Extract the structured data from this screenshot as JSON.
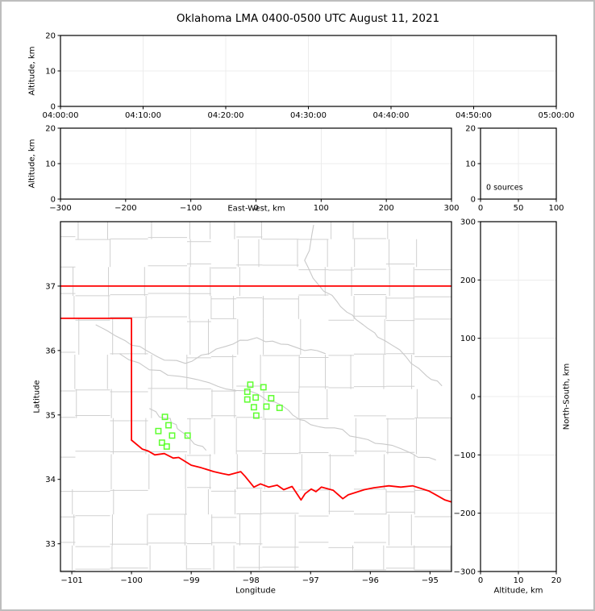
{
  "title": "Oklahoma LMA 0400-0500 UTC August 11, 2021",
  "colors": {
    "state_border": "#ff0000",
    "county_line": "#d0d0d0",
    "river_line": "#c9c9c9",
    "station_marker": "#5eff2f",
    "grid_line": "#ececec",
    "axis_line": "#000000",
    "figure_border": "#bdbdbd"
  },
  "panels": {
    "time_height": {
      "ylabel": "Altitude, km",
      "ylim": [
        0,
        20
      ],
      "yticks": [
        0,
        10,
        20
      ],
      "xticks": [
        "04:00:00",
        "04:10:00",
        "04:20:00",
        "04:30:00",
        "04:40:00",
        "04:50:00",
        "05:00:00"
      ]
    },
    "ew_height": {
      "xlabel": "East-West, km",
      "ylabel": "Altitude, km",
      "xlim": [
        -300,
        300
      ],
      "ylim": [
        0,
        20
      ],
      "xticks": [
        -300,
        -200,
        -100,
        0,
        100,
        200,
        300
      ],
      "yticks": [
        0,
        10,
        20
      ]
    },
    "alt_histogram": {
      "annotation": "0 sources",
      "xlim": [
        0,
        100
      ],
      "ylim": [
        0,
        20
      ],
      "xticks": [
        0,
        50,
        100
      ],
      "yticks": [
        0,
        10,
        20
      ]
    },
    "map": {
      "xlabel": "Longitude",
      "ylabel": "Latitude",
      "xlim": [
        -101.19,
        -94.64
      ],
      "ylim": [
        32.57,
        38.0
      ],
      "xticks": [
        -101,
        -100,
        -99,
        -98,
        -97,
        -96,
        -95
      ],
      "yticks": [
        33,
        34,
        35,
        36,
        37
      ],
      "state_border": {
        "north_border": [
          [
            -101.19,
            37.0
          ],
          [
            -94.64,
            37.0
          ]
        ],
        "panhandle": [
          [
            -101.19,
            36.5
          ],
          [
            -100.0,
            36.5
          ],
          [
            -100.0,
            34.61
          ]
        ],
        "red_river": [
          [
            -100.0,
            34.61
          ],
          [
            -99.82,
            34.47
          ],
          [
            -99.72,
            34.44
          ],
          [
            -99.61,
            34.38
          ],
          [
            -99.45,
            34.4
          ],
          [
            -99.3,
            34.33
          ],
          [
            -99.21,
            34.34
          ],
          [
            -99.0,
            34.22
          ],
          [
            -98.83,
            34.18
          ],
          [
            -98.62,
            34.12
          ],
          [
            -98.48,
            34.09
          ],
          [
            -98.37,
            34.07
          ],
          [
            -98.17,
            34.12
          ],
          [
            -98.1,
            34.05
          ],
          [
            -97.95,
            33.88
          ],
          [
            -97.84,
            33.93
          ],
          [
            -97.7,
            33.88
          ],
          [
            -97.56,
            33.91
          ],
          [
            -97.45,
            33.84
          ],
          [
            -97.31,
            33.89
          ],
          [
            -97.16,
            33.68
          ],
          [
            -97.09,
            33.78
          ],
          [
            -96.99,
            33.85
          ],
          [
            -96.91,
            33.81
          ],
          [
            -96.82,
            33.88
          ],
          [
            -96.62,
            33.83
          ],
          [
            -96.46,
            33.7
          ],
          [
            -96.37,
            33.76
          ],
          [
            -96.1,
            33.84
          ],
          [
            -95.94,
            33.87
          ],
          [
            -95.69,
            33.9
          ],
          [
            -95.49,
            33.88
          ],
          [
            -95.29,
            33.9
          ],
          [
            -95.02,
            33.82
          ],
          [
            -94.9,
            33.76
          ],
          [
            -94.75,
            33.68
          ],
          [
            -94.64,
            33.65
          ]
        ]
      },
      "rivers": [
        [
          [
            -96.95,
            37.95
          ],
          [
            -97.1,
            37.4
          ],
          [
            -96.85,
            37.0
          ],
          [
            -96.55,
            36.75
          ],
          [
            -96.3,
            36.55
          ],
          [
            -96.05,
            36.35
          ],
          [
            -95.75,
            36.15
          ],
          [
            -95.4,
            35.9
          ],
          [
            -95.05,
            35.6
          ],
          [
            -94.8,
            35.45
          ]
        ],
        [
          [
            -100.2,
            35.95
          ],
          [
            -99.7,
            35.7
          ],
          [
            -99.2,
            35.6
          ],
          [
            -98.7,
            35.5
          ],
          [
            -98.25,
            35.38
          ],
          [
            -97.9,
            35.33
          ],
          [
            -97.6,
            35.2
          ],
          [
            -97.3,
            35.0
          ],
          [
            -97.0,
            34.85
          ],
          [
            -96.6,
            34.8
          ],
          [
            -96.2,
            34.65
          ],
          [
            -95.8,
            34.55
          ],
          [
            -95.3,
            34.4
          ],
          [
            -94.9,
            34.3
          ]
        ],
        [
          [
            -100.6,
            36.4
          ],
          [
            -100.1,
            36.15
          ],
          [
            -99.75,
            36.0
          ],
          [
            -99.45,
            35.85
          ],
          [
            -99.1,
            35.8
          ],
          [
            -98.7,
            35.95
          ],
          [
            -98.3,
            36.1
          ],
          [
            -97.9,
            36.2
          ],
          [
            -97.5,
            36.1
          ],
          [
            -97.1,
            36.0
          ],
          [
            -96.75,
            35.95
          ]
        ],
        [
          [
            -99.7,
            35.1
          ],
          [
            -99.45,
            34.95
          ],
          [
            -99.25,
            34.85
          ],
          [
            -99.1,
            34.7
          ],
          [
            -98.95,
            34.55
          ],
          [
            -98.75,
            34.45
          ]
        ]
      ],
      "stations": [
        [
          -98.01,
          35.47
        ],
        [
          -97.79,
          35.43
        ],
        [
          -98.06,
          35.36
        ],
        [
          -97.92,
          35.27
        ],
        [
          -98.06,
          35.24
        ],
        [
          -97.66,
          35.26
        ],
        [
          -97.95,
          35.12
        ],
        [
          -97.74,
          35.13
        ],
        [
          -97.52,
          35.11
        ],
        [
          -97.91,
          34.99
        ],
        [
          -99.44,
          34.97
        ],
        [
          -99.38,
          34.84
        ],
        [
          -99.55,
          34.75
        ],
        [
          -99.32,
          34.68
        ],
        [
          -99.06,
          34.68
        ],
        [
          -99.49,
          34.57
        ],
        [
          -99.41,
          34.51
        ]
      ]
    },
    "ns_height": {
      "xlabel": "Altitude, km",
      "ylabel": "North-South, km",
      "xlim": [
        0,
        20
      ],
      "ylim": [
        -300,
        300
      ],
      "xticks": [
        0,
        10,
        20
      ],
      "yticks": [
        -300,
        -200,
        -100,
        0,
        100,
        200,
        300
      ]
    }
  },
  "chart_data": [
    {
      "type": "scatter",
      "panel": "altitude-vs-time",
      "title": "Oklahoma LMA 0400-0500 UTC August 11, 2021",
      "xlabel": "",
      "ylabel": "Altitude, km",
      "x_ticks": [
        "04:00:00",
        "04:10:00",
        "04:20:00",
        "04:30:00",
        "04:40:00",
        "04:50:00",
        "05:00:00"
      ],
      "ylim": [
        0,
        20
      ],
      "grid": true,
      "points": []
    },
    {
      "type": "scatter",
      "panel": "altitude-vs-east-west",
      "xlabel": "East-West, km",
      "ylabel": "Altitude, km",
      "xlim": [
        -300,
        300
      ],
      "ylim": [
        0,
        20
      ],
      "grid": true,
      "points": []
    },
    {
      "type": "scatter",
      "panel": "source-count-vs-altitude",
      "xlabel": "",
      "ylabel": "",
      "xlim": [
        0,
        100
      ],
      "ylim": [
        0,
        20
      ],
      "annotation": "0 sources",
      "grid": true,
      "points": []
    },
    {
      "type": "scatter",
      "panel": "plan-view-map",
      "xlabel": "Longitude",
      "ylabel": "Latitude",
      "xlim": [
        -101.19,
        -94.64
      ],
      "ylim": [
        32.57,
        38.0
      ],
      "grid": false,
      "series": [
        {
          "name": "lma-stations",
          "marker": "open-square",
          "color": "#5eff2f",
          "points": [
            [
              -98.01,
              35.47
            ],
            [
              -97.79,
              35.43
            ],
            [
              -98.06,
              35.36
            ],
            [
              -97.92,
              35.27
            ],
            [
              -98.06,
              35.24
            ],
            [
              -97.66,
              35.26
            ],
            [
              -97.95,
              35.12
            ],
            [
              -97.74,
              35.13
            ],
            [
              -97.52,
              35.11
            ],
            [
              -97.91,
              34.99
            ],
            [
              -99.44,
              34.97
            ],
            [
              -99.38,
              34.84
            ],
            [
              -99.55,
              34.75
            ],
            [
              -99.32,
              34.68
            ],
            [
              -99.06,
              34.68
            ],
            [
              -99.49,
              34.57
            ],
            [
              -99.41,
              34.51
            ]
          ]
        }
      ]
    },
    {
      "type": "scatter",
      "panel": "north-south-vs-altitude",
      "xlabel": "Altitude, km",
      "ylabel": "North-South, km",
      "xlim": [
        0,
        20
      ],
      "ylim": [
        -300,
        300
      ],
      "grid": true,
      "points": []
    }
  ]
}
